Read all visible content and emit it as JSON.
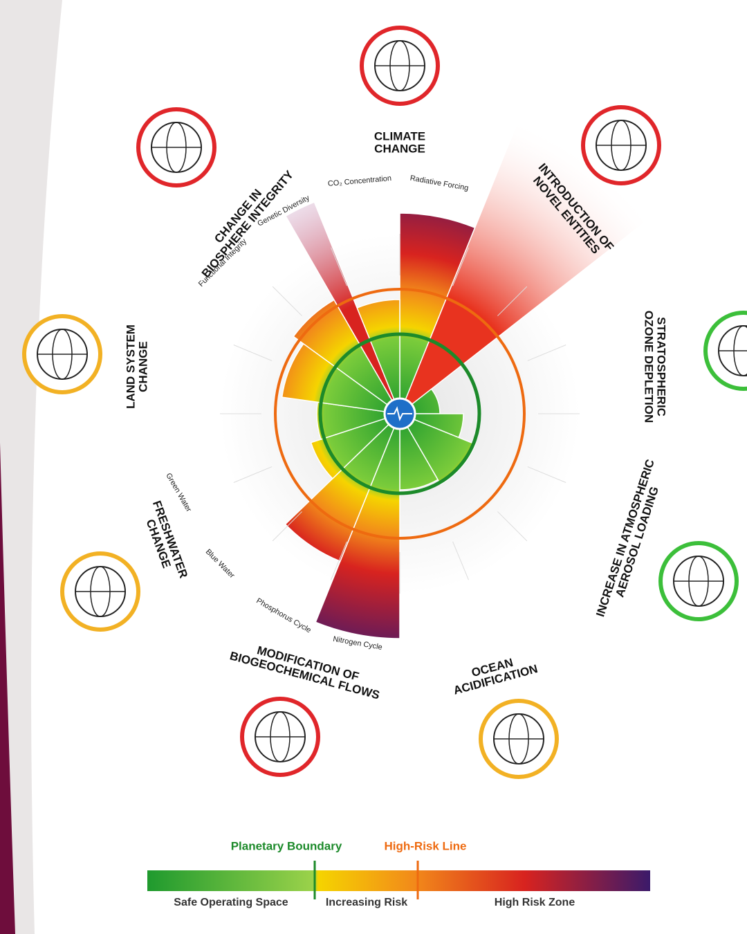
{
  "boundaries": [
    {
      "lines": [
        "CLIMATE",
        "CHANGE"
      ]
    },
    {
      "lines": [
        "CHANGE IN",
        "BIOSPHERE INTEGRITY"
      ]
    },
    {
      "lines": [
        "INTRODUCTION OF",
        "NOVEL ENTITIES"
      ]
    },
    {
      "lines": [
        "STRATOSPHERIC",
        "OZONE DEPLETION"
      ]
    },
    {
      "lines": [
        "INCREASE IN ATMOSPHERIC",
        "AEROSOL LOADING"
      ]
    },
    {
      "lines": [
        "OCEAN",
        "ACIDIFICATION"
      ]
    },
    {
      "lines": [
        "MODIFICATION OF",
        "BIOGEOCHEMICAL FLOWS"
      ]
    },
    {
      "lines": [
        "FRESHWATER",
        "CHANGE"
      ]
    },
    {
      "lines": [
        "LAND SYSTEM",
        "CHANGE"
      ]
    }
  ],
  "sublabels": [
    "Radiative Forcing",
    "CO₂ Concentration",
    "Genetic Diversity",
    "Functional Integrity",
    "Green Water",
    "Blue Water",
    "Phosphorus Cycle",
    "Nitrogen Cycle"
  ],
  "legend": {
    "planetary_boundary": "Planetary Boundary",
    "high_risk_line": "High-Risk Line",
    "safe": "Safe Operating Space",
    "increasing": "Increasing Risk",
    "high": "High Risk Zone"
  }
}
